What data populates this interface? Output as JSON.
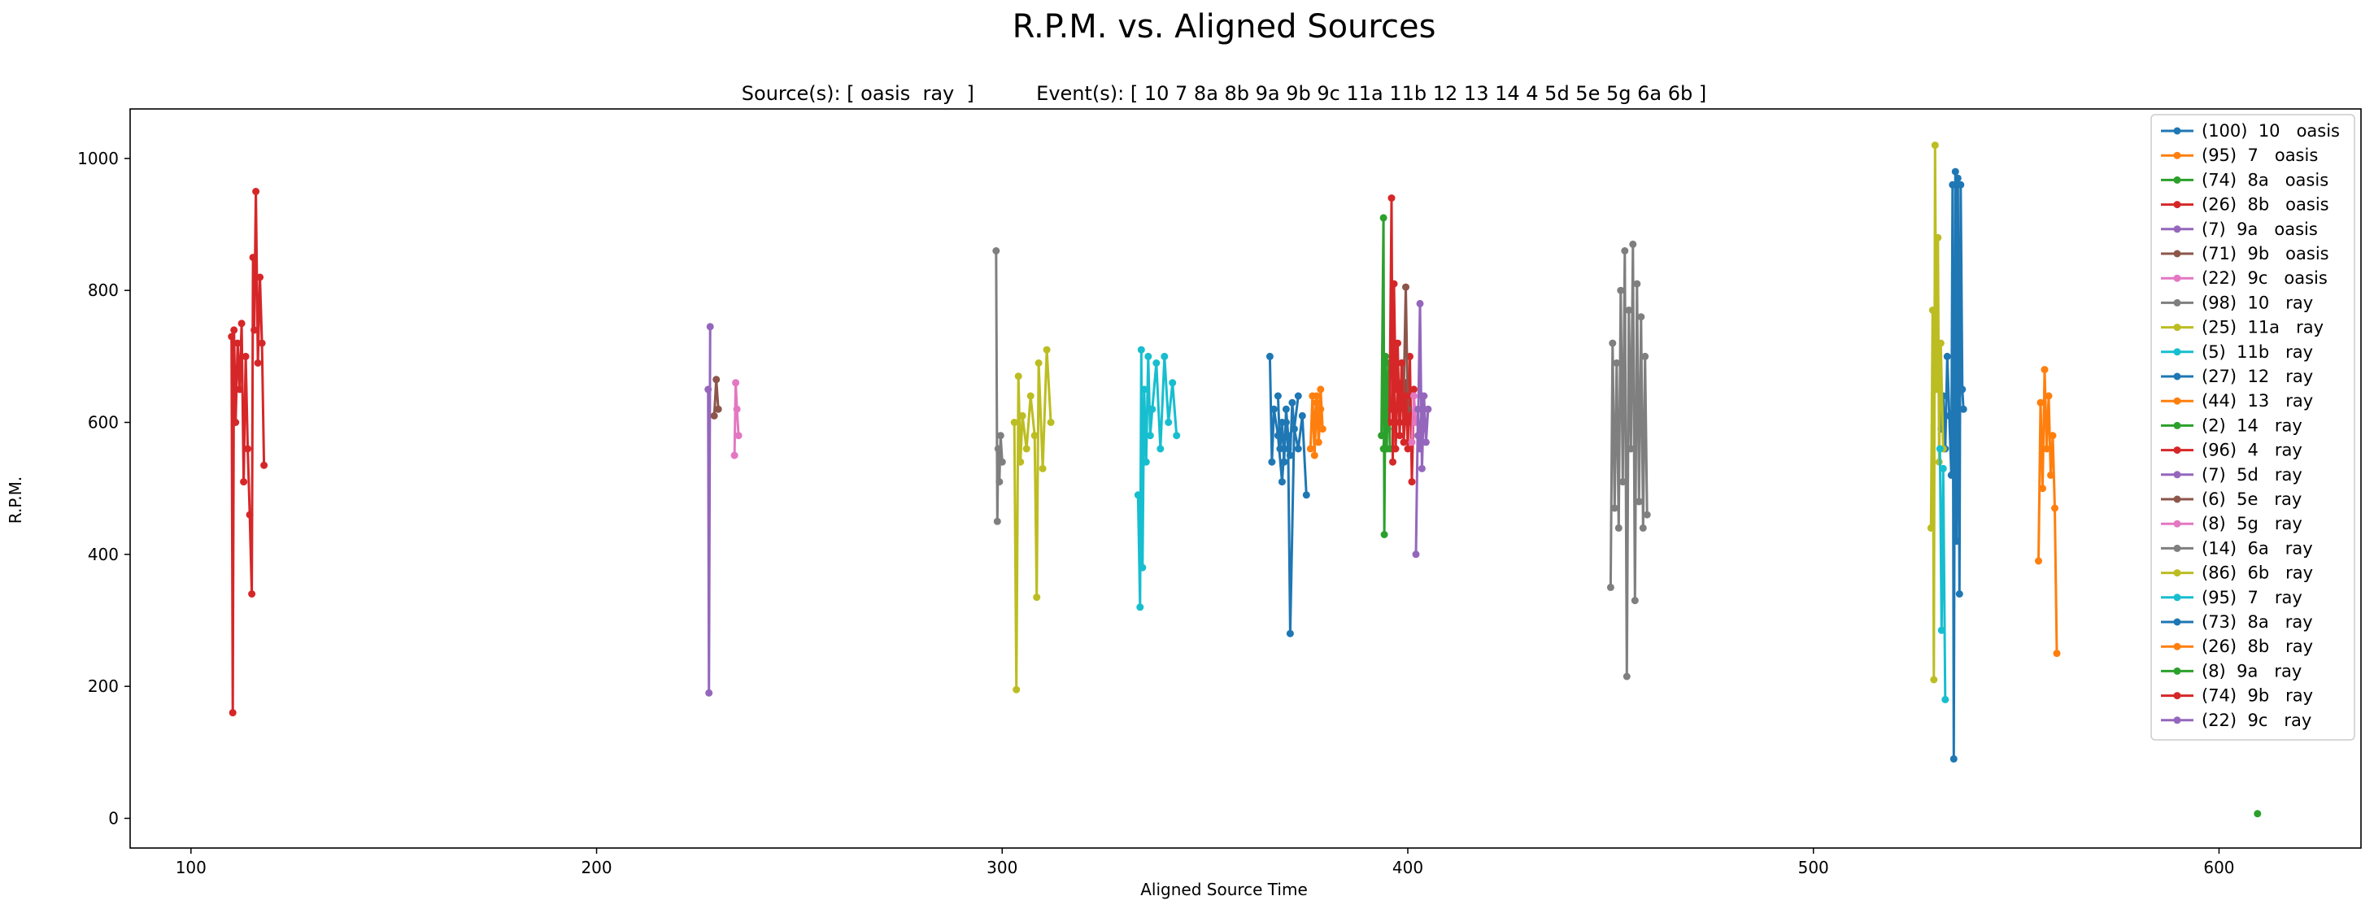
{
  "figure": {
    "title": "R.P.M. vs. Aligned Sources",
    "subtitle": "Source(s): [ oasis  ray  ]          Event(s): [ 10 7 8a 8b 9a 9b 9c 11a 11b 12 13 14 4 5d 5e 5g 6a 6b ]"
  },
  "chart_data": {
    "type": "line",
    "markers": "dot",
    "title": "R.P.M. vs. Aligned Sources",
    "subtitle": "Source(s): [ oasis  ray  ]          Event(s): [ 10 7 8a 8b 9a 9b 9c 11a 11b 12 13 14 4 5d 5e 5g 6a 6b ]",
    "xlabel": "Aligned Source Time",
    "ylabel": "R.P.M.",
    "xlim": [
      85,
      635
    ],
    "ylim": [
      -45,
      1075
    ],
    "xticks": [
      100,
      200,
      300,
      400,
      500,
      600
    ],
    "yticks": [
      0,
      200,
      400,
      600,
      800,
      1000
    ],
    "grid": false,
    "legend_position": "upper-right",
    "series": [
      {
        "name": "(100)  10   oasis",
        "color": "#1f77b4",
        "x": [
          531.5,
          532.0,
          532.5,
          533.0,
          533.5,
          534.0,
          534.3,
          534.6,
          535.0,
          535.3,
          535.6,
          536.0,
          536.3,
          536.7,
          537.0
        ],
        "y": [
          590,
          640,
          560,
          700,
          610,
          520,
          960,
          90,
          980,
          420,
          970,
          340,
          960,
          650,
          620
        ]
      },
      {
        "name": "(95)  7   oasis",
        "color": "#ff7f0e",
        "x": [
          376.0,
          376.5,
          377.0,
          377.5,
          378.0,
          378.5,
          379.0
        ],
        "y": [
          560,
          640,
          550,
          630,
          600,
          650,
          590
        ]
      },
      {
        "name": "(74)  8a   oasis",
        "color": "#2ca02c",
        "x": [
          393.5,
          394.0,
          394.2,
          394.5,
          394.8,
          395.2,
          395.6
        ],
        "y": [
          580,
          910,
          430,
          700,
          560,
          690,
          560
        ]
      },
      {
        "name": "(26)  8b   oasis",
        "color": "#d62728",
        "x": [
          395.5,
          396.0,
          396.3,
          396.6,
          397.0,
          397.5,
          398.0,
          398.5,
          399.0,
          399.5,
          400.0,
          400.5,
          401.0,
          401.5
        ],
        "y": [
          600,
          940,
          540,
          810,
          650,
          720,
          580,
          690,
          620,
          660,
          560,
          700,
          510,
          650
        ]
      },
      {
        "name": "(7)  9a   oasis",
        "color": "#9467bd",
        "x": [
          227.5,
          227.7,
          228.0
        ],
        "y": [
          650,
          190,
          745
        ]
      },
      {
        "name": "(71)  9b   oasis",
        "color": "#8c564b",
        "x": [
          229.0,
          229.5,
          230.0
        ],
        "y": [
          610,
          665,
          620
        ]
      },
      {
        "name": "(22)  9c   oasis",
        "color": "#e377c2",
        "x": [
          234.0,
          234.3,
          234.6,
          235.0
        ],
        "y": [
          550,
          660,
          620,
          580
        ]
      },
      {
        "name": "(98)  10   ray",
        "color": "#7f7f7f",
        "x": [
          298.5,
          298.8,
          299.0,
          299.3,
          299.6,
          300.0
        ],
        "y": [
          860,
          450,
          560,
          510,
          580,
          540
        ]
      },
      {
        "name": "(25)  11a   ray",
        "color": "#bcbd22",
        "x": [
          529.0,
          529.4,
          529.7,
          530.0,
          530.3,
          530.7,
          531.0,
          531.4,
          532.0
        ],
        "y": [
          440,
          770,
          210,
          1020,
          650,
          880,
          540,
          720,
          560
        ]
      },
      {
        "name": "(5)  11b   ray",
        "color": "#17becf",
        "x": [
          531.2,
          531.6,
          532.0,
          532.5
        ],
        "y": [
          560,
          285,
          530,
          180
        ]
      },
      {
        "name": "(27)  12   ray",
        "color": "#1f77b4",
        "x": [
          366.0,
          366.5,
          367.0,
          368.0,
          369.0,
          370.0,
          370.5,
          371.0,
          372.0,
          373.0,
          374.0,
          375.0
        ],
        "y": [
          700,
          540,
          620,
          580,
          510,
          600,
          560,
          280,
          590,
          560,
          610,
          490
        ]
      },
      {
        "name": "(44)  13   ray",
        "color": "#ff7f0e",
        "x": [
          555.5,
          556.0,
          556.5,
          557.0,
          557.5,
          558.0,
          558.5,
          559.0,
          559.5,
          560.0
        ],
        "y": [
          390,
          630,
          500,
          680,
          560,
          640,
          520,
          580,
          470,
          250
        ]
      },
      {
        "name": "(2)  14   ray",
        "color": "#2ca02c",
        "x": [
          609.5
        ],
        "y": [
          7
        ]
      },
      {
        "name": "(96)  4   ray",
        "color": "#d62728",
        "x": [
          110.0,
          110.3,
          110.6,
          111.0,
          111.5,
          112.0,
          112.5,
          113.0,
          113.5,
          114.0,
          114.5,
          115.0,
          115.3,
          115.6,
          116.0,
          116.5,
          117.0,
          117.5,
          118.0
        ],
        "y": [
          730,
          160,
          740,
          600,
          720,
          650,
          750,
          510,
          700,
          560,
          460,
          340,
          850,
          740,
          950,
          690,
          820,
          720,
          535
        ]
      },
      {
        "name": "(7)  5d   ray",
        "color": "#9467bd",
        "x": [
          402.5,
          403.0,
          403.5,
          404.0,
          404.5,
          405.0
        ],
        "y": [
          580,
          780,
          530,
          640,
          570,
          620
        ]
      },
      {
        "name": "(6)  5e   ray",
        "color": "#8c564b",
        "x": [
          399.0,
          399.5,
          400.0
        ],
        "y": [
          640,
          805,
          620
        ]
      },
      {
        "name": "(8)  5g   ray",
        "color": "#e377c2",
        "x": [
          401.0,
          401.5,
          402.0
        ],
        "y": [
          570,
          640,
          600
        ]
      },
      {
        "name": "(14)  6a   ray",
        "color": "#7f7f7f",
        "x": [
          450.0,
          450.5,
          451.0,
          451.5,
          452.0,
          452.5,
          453.0,
          453.5,
          454.0,
          454.5,
          455.0,
          455.5,
          456.0,
          456.5,
          457.0,
          457.5,
          458.0,
          458.5,
          459.0
        ],
        "y": [
          350,
          720,
          470,
          690,
          440,
          800,
          510,
          860,
          215,
          770,
          560,
          870,
          330,
          810,
          480,
          760,
          440,
          700,
          460
        ]
      },
      {
        "name": "(86)  6b   ray",
        "color": "#bcbd22",
        "x": [
          303.0,
          303.5,
          304.0,
          304.5,
          305.0,
          306.0,
          307.0,
          308.0,
          308.5,
          309.0,
          310.0,
          311.0,
          312.0
        ],
        "y": [
          600,
          195,
          670,
          540,
          610,
          560,
          640,
          580,
          335,
          690,
          530,
          710,
          600
        ]
      },
      {
        "name": "(95)  7   ray",
        "color": "#17becf",
        "x": [
          333.5,
          334.0,
          334.3,
          334.6,
          335.0,
          335.5,
          336.0,
          336.5,
          337.0,
          338.0,
          339.0,
          340.0,
          341.0,
          342.0,
          343.0
        ],
        "y": [
          490,
          320,
          710,
          380,
          650,
          540,
          700,
          580,
          620,
          690,
          560,
          700,
          600,
          660,
          580
        ]
      },
      {
        "name": "(73)  8a   ray",
        "color": "#1f77b4",
        "x": [
          368.0,
          368.5,
          369.0,
          369.5,
          370.0,
          370.5,
          371.0,
          371.5,
          372.0,
          373.0
        ],
        "y": [
          640,
          560,
          600,
          540,
          620,
          580,
          550,
          630,
          590,
          640
        ]
      },
      {
        "name": "(26)  8b   ray",
        "color": "#ff7f0e",
        "x": [
          377.0,
          377.5,
          378.0,
          378.5
        ],
        "y": [
          600,
          640,
          570,
          620
        ]
      },
      {
        "name": "(8)  9a   ray",
        "color": "#2ca02c",
        "x": [
          394.0,
          394.5,
          395.0
        ],
        "y": [
          560,
          620,
          590
        ]
      },
      {
        "name": "(74)  9b   ray",
        "color": "#d62728",
        "x": [
          396.0,
          396.5,
          397.0,
          397.5,
          398.0,
          398.5,
          399.0,
          399.5,
          400.0
        ],
        "y": [
          620,
          700,
          560,
          660,
          600,
          690,
          570,
          640,
          600
        ]
      },
      {
        "name": "(22)  9c   ray",
        "color": "#9467bd",
        "x": [
          402.0,
          402.5,
          403.0,
          403.5,
          404.0
        ],
        "y": [
          400,
          620,
          560,
          640,
          590
        ]
      }
    ]
  }
}
